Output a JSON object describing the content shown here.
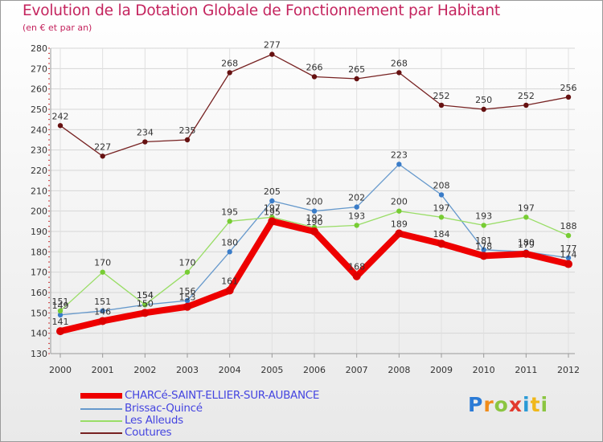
{
  "title": "Evolution de la Dotation Globale de Fonctionnement par Habitant",
  "subtitle": "(en € et par an)",
  "logo_text": "Proxiti",
  "chart_data": {
    "type": "line",
    "title": "Evolution de la Dotation Globale de Fonctionnement par Habitant",
    "ylabel": "(en € et par an)",
    "xlabel": "",
    "categories": [
      "2000",
      "2001",
      "2002",
      "2003",
      "2004",
      "2005",
      "2006",
      "2007",
      "2008",
      "2009",
      "2010",
      "2011",
      "2012"
    ],
    "ylim": [
      130,
      280
    ],
    "yticks": [
      130,
      140,
      150,
      160,
      170,
      180,
      190,
      200,
      210,
      220,
      230,
      240,
      250,
      260,
      270,
      280
    ],
    "grid": true,
    "legend": "bottom-left",
    "series": [
      {
        "name": "CHARCé-SAINT-ELLIER-SUR-AUBANCE",
        "color": "#ee0000",
        "values": [
          141,
          146,
          150,
          153,
          161,
          195,
          190,
          168,
          189,
          184,
          178,
          179,
          174
        ]
      },
      {
        "name": "Brissac-Quincé",
        "color": "#6699cc",
        "values": [
          149,
          151,
          154,
          156,
          180,
          205,
          200,
          202,
          223,
          208,
          181,
          180,
          177
        ]
      },
      {
        "name": "Les Alleuds",
        "color": "#99dd66",
        "values": [
          151,
          170,
          154,
          170,
          195,
          197,
          192,
          193,
          200,
          197,
          193,
          197,
          188
        ]
      },
      {
        "name": "Coutures",
        "color": "#772222",
        "values": [
          242,
          227,
          234,
          235,
          268,
          277,
          266,
          265,
          268,
          252,
          250,
          252,
          256
        ]
      }
    ]
  }
}
